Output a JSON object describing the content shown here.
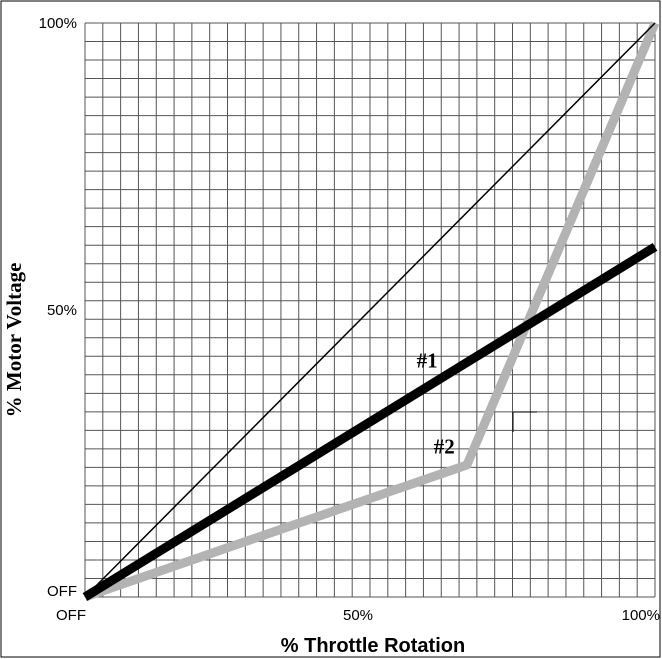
{
  "chart_data": {
    "type": "line",
    "title": "",
    "xlabel": "% Throttle Rotation",
    "ylabel": "% Motor Voltage",
    "xlim": [
      0,
      100
    ],
    "ylim": [
      0,
      100
    ],
    "grid": true,
    "x_ticks": [
      {
        "value": 0,
        "label": "OFF"
      },
      {
        "value": 50,
        "label": "50%"
      },
      {
        "value": 100,
        "label": "100%"
      }
    ],
    "y_ticks": [
      {
        "value": 0,
        "label": "OFF"
      },
      {
        "value": 50,
        "label": "50%"
      },
      {
        "value": 100,
        "label": "100%"
      }
    ],
    "series": [
      {
        "values_x": [
          0,
          100
        ],
        "values_y": [
          0,
          100
        ],
        "color": "#000000",
        "style": "thin"
      },
      {
        "values_x": [
          0,
          100
        ],
        "values_y": [
          0,
          61
        ],
        "color": "#000000",
        "style": "thick"
      },
      {
        "values_x": [
          0,
          67,
          100
        ],
        "values_y": [
          0,
          23,
          100
        ],
        "color": "#b3b3b3",
        "style": "thick"
      }
    ],
    "annotations": [
      {
        "text": "#1",
        "x": 58,
        "y": 40
      },
      {
        "text": "#2",
        "x": 61,
        "y": 25
      }
    ]
  }
}
